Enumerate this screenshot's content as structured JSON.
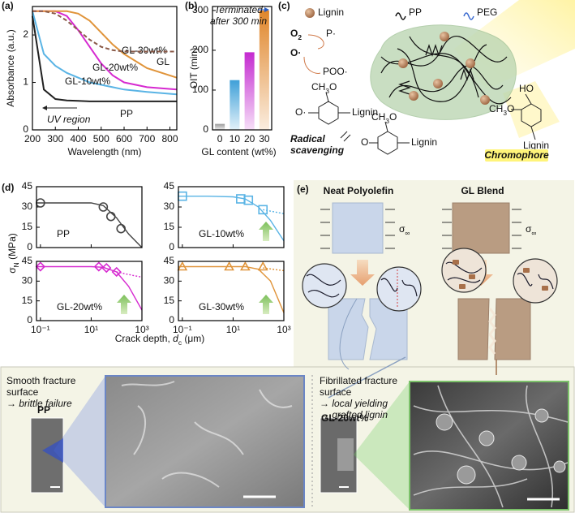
{
  "chart_data": [
    {
      "type": "line",
      "panel_label": "(a)",
      "x_label": "Wavelength (nm)",
      "y_label": "Absorbance (a.u.)",
      "annotation": "UV region",
      "x": [
        200,
        250,
        300,
        350,
        400,
        450,
        500,
        550,
        600,
        700,
        830
      ],
      "series": [
        {
          "name": "PP",
          "color": "#222222",
          "values": [
            2.4,
            0.85,
            0.65,
            0.62,
            0.61,
            0.6,
            0.6,
            0.6,
            0.6,
            0.6,
            0.6
          ]
        },
        {
          "name": "GL-10wt%",
          "color": "#5ab4e5",
          "values": [
            2.5,
            1.6,
            1.35,
            1.2,
            1.1,
            1.0,
            0.95,
            0.9,
            0.85,
            0.8,
            0.75
          ]
        },
        {
          "name": "GL-20wt%",
          "color": "#d62ad0",
          "values": [
            2.5,
            2.5,
            2.5,
            2.4,
            2.1,
            1.75,
            1.4,
            1.15,
            1.0,
            0.9,
            0.85
          ]
        },
        {
          "name": "GL-30wt%",
          "color": "#e0943a",
          "values": [
            2.5,
            2.5,
            2.5,
            2.5,
            2.45,
            2.3,
            2.05,
            1.8,
            1.6,
            1.3,
            1.1
          ]
        },
        {
          "name": "GL",
          "color": "#8a5a48",
          "dashed": true,
          "values": [
            2.5,
            2.5,
            2.45,
            2.3,
            2.1,
            1.9,
            1.75,
            1.68,
            1.65,
            1.65,
            1.65
          ]
        }
      ],
      "xlim": [
        200,
        830
      ],
      "xticks": [
        200,
        300,
        400,
        500,
        600,
        700,
        800
      ],
      "ylim": [
        0,
        2.6
      ],
      "yticks": [
        0,
        1,
        2
      ]
    },
    {
      "type": "bar",
      "panel_label": "(b)",
      "x_label": "GL content (wt%)",
      "y_label": "OIT (min)",
      "annotation": [
        "Terminated",
        "after 300 min"
      ],
      "categories": [
        "0",
        "10",
        "20",
        "30"
      ],
      "values": [
        15,
        125,
        195,
        300
      ],
      "colors": [
        "#9a9a9a",
        "#3fa0d8",
        "#c42ad0",
        "#e0862a"
      ],
      "ylim": [
        0,
        310
      ],
      "yticks": [
        0,
        100,
        200,
        300
      ]
    },
    {
      "type": "scatter",
      "name": "PP",
      "color": "#444444",
      "marker": "circle",
      "x": [
        0.1,
        30,
        60,
        150
      ],
      "y": [
        33,
        30,
        23,
        14
      ],
      "fit_x": [
        0.07,
        1,
        10,
        30,
        100,
        300,
        1000
      ],
      "fit_y": [
        33,
        33,
        33,
        31,
        22,
        10,
        0
      ],
      "xlog": true,
      "xlim": [
        0.07,
        1000
      ],
      "xticks": [
        0.1,
        10,
        1000
      ],
      "xtick_labels": false,
      "ylim": [
        0,
        45
      ],
      "yticks": [
        0,
        15,
        30,
        45
      ]
    },
    {
      "type": "scatter",
      "name": "GL-10wt%",
      "color": "#5ab4e5",
      "marker": "square",
      "x": [
        0.1,
        20,
        40,
        150
      ],
      "y": [
        38,
        36,
        35,
        28
      ],
      "fit_x": [
        0.07,
        1,
        10,
        30,
        100,
        300,
        1000
      ],
      "fit_y": [
        38,
        38,
        37.5,
        36,
        30,
        20,
        5
      ],
      "projection_x": [
        150,
        1000
      ],
      "projection_y": [
        28,
        25
      ],
      "xlog": true,
      "xlim": [
        0.07,
        1000
      ],
      "xticks": [
        0.1,
        10,
        1000
      ],
      "xtick_labels": false,
      "ylim": [
        0,
        45
      ],
      "yticks": [
        0,
        15,
        30,
        45
      ]
    },
    {
      "type": "scatter",
      "name": "GL-20wt%",
      "color": "#d62ad0",
      "marker": "diamond",
      "x": [
        0.1,
        20,
        40,
        100
      ],
      "y": [
        41,
        41,
        40,
        37
      ],
      "fit_x": [
        0.07,
        1,
        10,
        30,
        100,
        300,
        1000
      ],
      "fit_y": [
        41,
        41,
        41,
        40.5,
        37,
        26,
        8
      ],
      "projection_x": [
        100,
        300,
        1000
      ],
      "projection_y": [
        37,
        35,
        33
      ],
      "xlog": true,
      "xlim": [
        0.07,
        1000
      ],
      "xticks": [
        {
          "value": 0.1,
          "label": "10⁻¹"
        },
        {
          "value": 10,
          "label": "10¹"
        },
        {
          "value": 1000,
          "label": "10³"
        }
      ],
      "xtick_labels": true,
      "ylim": [
        0,
        45
      ],
      "yticks": [
        0,
        15,
        30,
        45
      ]
    },
    {
      "type": "scatter",
      "name": "GL-30wt%",
      "color": "#e0943a",
      "marker": "triangle",
      "x": [
        0.1,
        7,
        30,
        150
      ],
      "y": [
        41,
        41,
        41,
        41
      ],
      "fit_x": [
        0.07,
        1,
        10,
        30,
        100,
        300,
        1000
      ],
      "fit_y": [
        41,
        41,
        41,
        41,
        39,
        30,
        6
      ],
      "projection_x": [
        150,
        1000
      ],
      "projection_y": [
        40,
        38
      ],
      "xlog": true,
      "xlim": [
        0.07,
        1000
      ],
      "xticks": [
        {
          "value": 0.1,
          "label": "10⁻¹"
        },
        {
          "value": 10,
          "label": "10¹"
        },
        {
          "value": 1000,
          "label": "10³"
        }
      ],
      "xtick_labels": true,
      "ylim": [
        0,
        45
      ],
      "yticks": [
        0,
        15,
        30,
        45
      ]
    }
  ],
  "panel_c": {
    "label": "(c)",
    "legend": [
      "Lignin",
      "PP",
      "PEG"
    ],
    "o2": [
      "O",
      "2"
    ],
    "p_radical": "P·",
    "o_radical": "O·",
    "poo": "POO·",
    "methoxy": [
      [
        "CH",
        "3",
        "O"
      ],
      [
        "CH",
        "3",
        "O"
      ],
      [
        "CH",
        "3",
        "O"
      ]
    ],
    "phenoxy_o": "O·",
    "ketone_o": "O",
    "lignin_labels": [
      "Lignin",
      "Lignin",
      "Lignin"
    ],
    "ho": "HO",
    "scavenging": [
      "Radical",
      "scavenging"
    ],
    "chromophore": "Chromophore"
  },
  "panel_d": {
    "label": "(d)",
    "y_label": [
      "σ",
      "N",
      " (MPa)"
    ],
    "x_label": [
      "Crack depth, ",
      "d",
      "c",
      " (μm)"
    ]
  },
  "panel_e": {
    "label": "(e)",
    "titles": [
      "Neat Polyolefin",
      "GL Blend"
    ],
    "stress": [
      [
        "σ",
        "∞"
      ],
      [
        "σ",
        "∞"
      ]
    ]
  },
  "bottom": {
    "left": {
      "caption": [
        "Smooth fracture",
        "surface",
        "→ brittle failure"
      ],
      "sample": "PP"
    },
    "right": {
      "caption": [
        "Fibrillated fracture",
        "surface",
        "→ local yielding",
        "→ grafted lignin"
      ],
      "sample": "GL-20wt%"
    }
  }
}
